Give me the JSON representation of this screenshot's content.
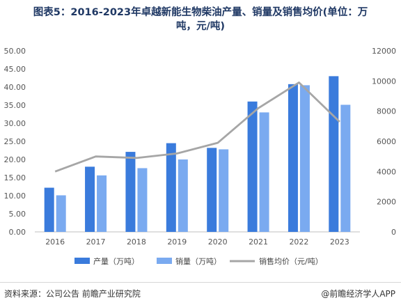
{
  "chart_data": {
    "type": "bar+line",
    "title_line1": "图表5：2016-2023年卓越新能生物柴油产量、销量及销售均价(单位：万",
    "title_line2": "吨，元/吨)",
    "categories": [
      "2016",
      "2017",
      "2018",
      "2019",
      "2020",
      "2021",
      "2022",
      "2023"
    ],
    "series": [
      {
        "name": "产量（万吨）",
        "type": "bar",
        "axis": "left",
        "color": "#3a7bdc",
        "values": [
          12.2,
          18.0,
          22.1,
          24.5,
          23.2,
          36.0,
          40.8,
          43.0
        ]
      },
      {
        "name": "销量（万吨）",
        "type": "bar",
        "axis": "left",
        "color": "#7aaaf0",
        "values": [
          10.1,
          15.6,
          17.6,
          20.0,
          22.8,
          33.0,
          40.5,
          35.1
        ]
      },
      {
        "name": "销售均价（元/吨）",
        "type": "line",
        "axis": "right",
        "color": "#a6a6a6",
        "values": [
          4000,
          5000,
          4900,
          5200,
          5900,
          8200,
          9900,
          7300
        ]
      }
    ],
    "y_left": {
      "min": 0,
      "max": 50,
      "step": 5,
      "ticks": [
        "0.00",
        "5.00",
        "10.00",
        "15.00",
        "20.00",
        "25.00",
        "30.00",
        "35.00",
        "40.00",
        "45.00",
        "50.00"
      ]
    },
    "y_right": {
      "min": 0,
      "max": 12000,
      "step": 2000,
      "ticks": [
        "0",
        "2000",
        "4000",
        "6000",
        "8000",
        "10000",
        "12000"
      ]
    },
    "grid": false,
    "legend_placement": "bottom-center"
  },
  "footer": {
    "source": "资料来源：公司公告 前瞻产业研究院",
    "brand": "@前瞻经济学人APP"
  }
}
